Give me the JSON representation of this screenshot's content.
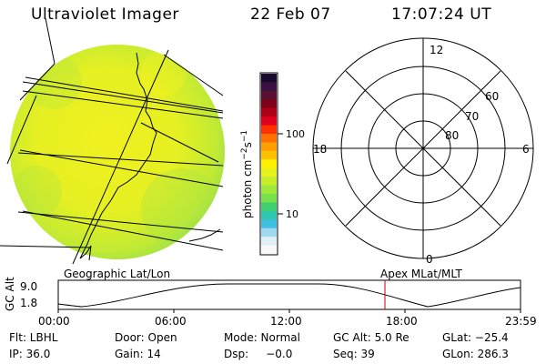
{
  "header": {
    "instrument": "Ultraviolet Imager",
    "date": "22 Feb 07",
    "time": "17:07:24 UT"
  },
  "colorbar": {
    "unit_label": "photon cm",
    "unit_exp1": "−2",
    "unit_s": "s",
    "unit_exp2": "−1",
    "tick_high": "100",
    "tick_low": "10",
    "colors": [
      "#1a0a2e",
      "#3a1040",
      "#5a1030",
      "#800018",
      "#b00018",
      "#e00020",
      "#ff3000",
      "#ff7000",
      "#ffa000",
      "#ffc000",
      "#fff000",
      "#e6f21a",
      "#c8ee2a",
      "#a0e83a",
      "#78e04a",
      "#40d070",
      "#30c8b0",
      "#40c0e0",
      "#a0d8f0",
      "#e0f0f8",
      "#f8f8f8"
    ]
  },
  "polar": {
    "label_top": "12",
    "label_left": "18",
    "label_right": "6",
    "label_bottom": "0",
    "ring_60": "60",
    "ring_70": "70",
    "ring_80": "80"
  },
  "timeline": {
    "left_label": "Geographic Lat/Lon",
    "right_label": "Apex MLat/MLT",
    "yaxis_label": "GC Alt",
    "y_high": "9.0",
    "y_low": "1.8",
    "ticks": [
      "00:00",
      "06:00",
      "12:00",
      "18:00",
      "23:59"
    ]
  },
  "status": {
    "flt": "Flt: LBHL",
    "ip": "IP: 36.0",
    "door": "Door: Open",
    "gain": "Gain: 14",
    "mode": "Mode: Normal",
    "dsp": "Dsp:     −0.0",
    "gcalt": "GC Alt: 5.0 Re",
    "seq": "Seq: 39",
    "glat": "GLat: −25.4",
    "glon": "GLon: 286.3"
  }
}
